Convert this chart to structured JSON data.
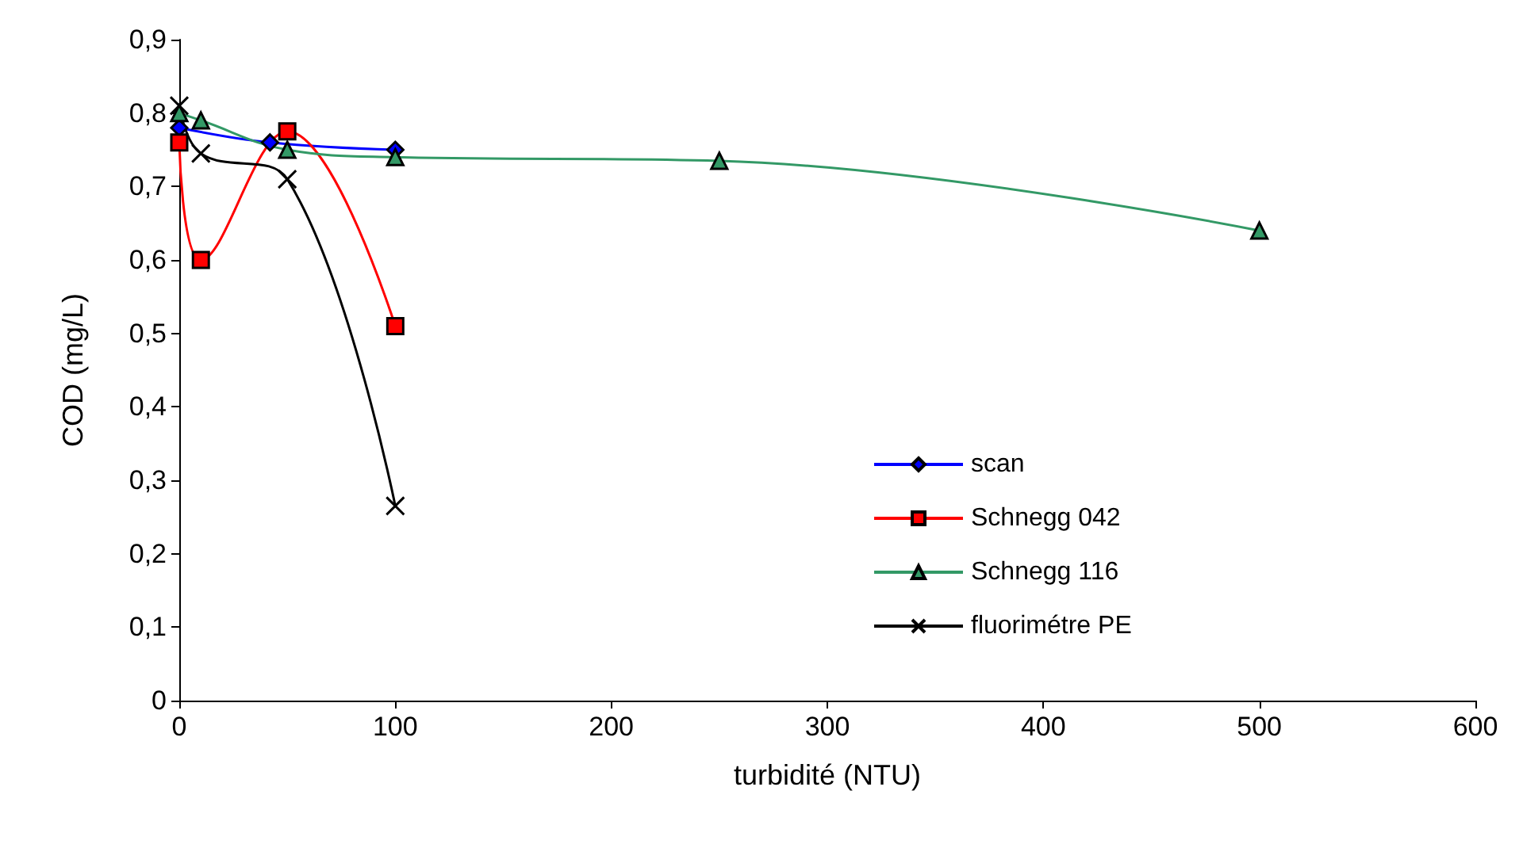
{
  "chart_data": {
    "type": "line",
    "xlabel": "turbidité (NTU)",
    "ylabel": "COD (mg/L)",
    "xlim": [
      0,
      600
    ],
    "xticks": [
      0,
      100,
      200,
      300,
      400,
      500,
      600
    ],
    "ylim": [
      0,
      0.9
    ],
    "yticks": [
      0,
      {
        "value": 0.1,
        "label": "0,1"
      },
      {
        "value": 0.2,
        "label": "0,2"
      },
      {
        "value": 0.3,
        "label": "0,3"
      },
      {
        "value": 0.4,
        "label": "0,4"
      },
      {
        "value": 0.5,
        "label": "0,5"
      },
      {
        "value": 0.6,
        "label": "0,6"
      },
      {
        "value": 0.7,
        "label": "0,7"
      },
      {
        "value": 0.8,
        "label": "0,8"
      },
      {
        "value": 0.9,
        "label": "0,9"
      }
    ],
    "grid": false,
    "legend": "right",
    "series": [
      {
        "name": "scan",
        "color": "#0000ff",
        "marker": "diamond",
        "x": [
          0,
          42,
          100
        ],
        "values": [
          0.78,
          0.76,
          0.75
        ]
      },
      {
        "name": "Schnegg 042",
        "color": "#ff0000",
        "marker": "square",
        "x": [
          0,
          10,
          50,
          100
        ],
        "values": [
          0.76,
          0.6,
          0.775,
          0.51
        ]
      },
      {
        "name": "Schnegg 116",
        "color": "#339966",
        "marker": "triangle",
        "x": [
          0,
          10,
          50,
          100,
          250,
          500
        ],
        "values": [
          0.8,
          0.79,
          0.75,
          0.74,
          0.735,
          0.64
        ]
      },
      {
        "name": "fluorimétre PE",
        "color": "#000000",
        "marker": "cross",
        "x": [
          0,
          10,
          50,
          100
        ],
        "values": [
          0.81,
          0.745,
          0.71,
          0.265
        ]
      }
    ]
  }
}
